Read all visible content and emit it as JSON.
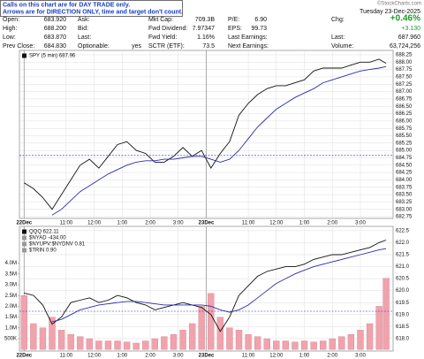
{
  "annotation": [
    "Calls on this chart are for DAY TRADE only.",
    "Arrows are for DIRECTION ONLY, time and target don't count."
  ],
  "watermark": "©StockCharts.com",
  "header": {
    "date": "Tuesday 23-Dec-2025",
    "columns": [
      [
        {
          "label": "Open:",
          "value": "683.920"
        },
        {
          "label": "High:",
          "value": "688.200"
        },
        {
          "label": "Low:",
          "value": "683.870"
        },
        {
          "label": "Prev Close:",
          "value": "684.830"
        }
      ],
      [
        {
          "label": "Ask:"
        },
        {
          "label": "Bid:"
        },
        {
          "label": "Last:"
        },
        {
          "label": "Optionable:",
          "value": "yes"
        }
      ],
      [
        {
          "label": "Mkt Cap:",
          "value": "709.3B"
        },
        {
          "label": "Fwd Dividend:",
          "value": "7.97347"
        },
        {
          "label": "Fwd Yield:",
          "value": "1.16%"
        },
        {
          "label": "SCTR (ETF):",
          "value": "73.5"
        }
      ],
      [
        {
          "label": "P/E:",
          "value": "6.90"
        },
        {
          "label": "EPS:",
          "value": "99.73"
        },
        {
          "label": "Last Earnings:"
        },
        {
          "label": "Next Earnings:"
        }
      ],
      [
        {
          "label": "Chg:",
          "value": "+0.46%"
        },
        {
          "value": "+3.130"
        },
        {
          "label": "Last:",
          "value": "687.960"
        },
        {
          "label": "Volume:",
          "value": "63,724,256"
        }
      ]
    ]
  },
  "chart_data": [
    {
      "type": "line",
      "x": [
        0,
        4,
        8,
        12,
        16,
        20,
        24,
        28,
        32,
        36,
        40,
        44,
        48,
        52,
        56,
        60,
        64,
        68,
        72,
        76,
        80,
        84,
        88,
        92,
        96,
        100,
        104,
        108,
        112,
        116,
        120,
        124,
        128,
        132,
        136,
        140,
        144,
        148,
        152,
        155
      ],
      "xlim": [
        -2,
        158
      ],
      "xticks": [
        {
          "value": 0,
          "label": "22Dec"
        },
        {
          "value": 18,
          "label": "11:00"
        },
        {
          "value": 30,
          "label": "12:00"
        },
        {
          "value": 42,
          "label": "1:00"
        },
        {
          "value": 54,
          "label": "2:00"
        },
        {
          "value": 66,
          "label": "3:00"
        },
        {
          "value": 78,
          "label": "23Dec"
        },
        {
          "value": 96,
          "label": "11:00"
        },
        {
          "value": 108,
          "label": "12:00"
        },
        {
          "value": 120,
          "label": "1:00"
        },
        {
          "value": 132,
          "label": "2:00"
        },
        {
          "value": 144,
          "label": "3:00"
        }
      ],
      "ylim": [
        682.69,
        688.4
      ],
      "yticks": [
        682.75,
        {
          "value": 683,
          "label": "683.00"
        },
        683.25,
        {
          "value": 683.5,
          "label": "683.50"
        },
        683.75,
        {
          "value": 684,
          "label": "684.00"
        },
        684.25,
        {
          "value": 684.5,
          "label": "684.50"
        },
        684.75,
        {
          "value": 685,
          "label": "685.00"
        },
        685.25,
        {
          "value": 685.5,
          "label": "685.50"
        },
        685.75,
        {
          "value": 686,
          "label": "686.00"
        },
        686.25,
        {
          "value": 686.5,
          "label": "686.50"
        },
        686.75,
        {
          "value": 687,
          "label": "687.00"
        },
        687.25,
        {
          "value": 687.5,
          "label": "687.50"
        },
        687.75,
        {
          "value": 688,
          "label": "688.00"
        },
        688.25
      ],
      "grid": true,
      "reference_line": 684.83,
      "series": [
        {
          "name": "SPY (5 min) 687.96",
          "color": "#111111",
          "values": [
            683.9,
            683.7,
            683.4,
            683.0,
            683.5,
            684.0,
            684.5,
            684.7,
            684.4,
            684.8,
            685.2,
            685.3,
            685.0,
            684.9,
            684.6,
            684.6,
            684.8,
            685.1,
            684.8,
            685.0,
            684.4,
            684.9,
            685.3,
            686.2,
            686.6,
            686.9,
            687.1,
            687.2,
            687.2,
            687.3,
            687.4,
            687.7,
            687.8,
            687.8,
            687.8,
            687.9,
            688.0,
            688.0,
            688.1,
            687.96
          ]
        },
        {
          "color": "#2b2bb0",
          "values": [
            null,
            null,
            null,
            682.8,
            683.0,
            683.3,
            683.6,
            683.8,
            684.0,
            684.2,
            684.35,
            684.5,
            684.6,
            684.65,
            684.65,
            684.7,
            684.7,
            684.75,
            684.8,
            684.8,
            684.7,
            684.6,
            684.7,
            685.0,
            685.4,
            685.8,
            686.1,
            686.4,
            686.6,
            686.8,
            686.95,
            687.1,
            687.3,
            687.4,
            687.5,
            687.6,
            687.7,
            687.75,
            687.8,
            687.85
          ]
        }
      ]
    },
    {
      "type": "line",
      "x": [
        0,
        4,
        8,
        12,
        16,
        20,
        24,
        28,
        32,
        36,
        40,
        44,
        48,
        52,
        56,
        60,
        64,
        68,
        72,
        76,
        80,
        84,
        88,
        92,
        96,
        100,
        104,
        108,
        112,
        116,
        120,
        124,
        128,
        132,
        136,
        140,
        144,
        148,
        152,
        155
      ],
      "xlim": [
        -2,
        158
      ],
      "xticks": [
        {
          "value": 0,
          "label": "22Dec"
        },
        {
          "value": 18,
          "label": "11:00"
        },
        {
          "value": 30,
          "label": "12:00"
        },
        {
          "value": 42,
          "label": "1:00"
        },
        {
          "value": 54,
          "label": "2:00"
        },
        {
          "value": 66,
          "label": "3:00"
        },
        {
          "value": 78,
          "label": "23Dec"
        },
        {
          "value": 96,
          "label": "11:00"
        },
        {
          "value": 108,
          "label": "12:00"
        },
        {
          "value": 120,
          "label": "1:00"
        },
        {
          "value": 132,
          "label": "2:00"
        },
        {
          "value": 144,
          "label": "3:00"
        }
      ],
      "ylim": [
        -70000,
        5700000
      ],
      "yticks": [
        {
          "value": 500000,
          "label": "500K"
        },
        {
          "value": 1000000,
          "label": "1.0M"
        },
        {
          "value": 1500000,
          "label": "1.5M"
        },
        {
          "value": 2000000,
          "label": "2.0M"
        },
        {
          "value": 2500000,
          "label": "2.5M"
        },
        {
          "value": 3000000,
          "label": "3.0M"
        },
        {
          "value": 3500000,
          "label": "3.5M"
        },
        {
          "value": 4000000,
          "label": "4.0M"
        }
      ],
      "y2lim": [
        617.48,
        622.68
      ],
      "y2ticks": [
        {
          "value": 618,
          "label": "618.0"
        },
        618.5,
        {
          "value": 619,
          "label": "619.0"
        },
        619.5,
        {
          "value": 620,
          "label": "620.0"
        },
        620.5,
        {
          "value": 621,
          "label": "621.0"
        },
        621.5,
        {
          "value": 622,
          "label": "622.0"
        },
        622.5
      ],
      "grid": true,
      "reference_line": 619.14,
      "annotations": [
        "$NYAD -434.00",
        "$NYUPV:$NYDNV 0.81",
        "$TRIN 0.90"
      ],
      "series": [
        {
          "type": "bar",
          "color": "#f0a3ad",
          "values": [
            2500000,
            1200000,
            1000000,
            1500000,
            900000,
            700000,
            600000,
            500000,
            400000,
            400000,
            400000,
            350000,
            300000,
            400000,
            500000,
            600000,
            700000,
            900000,
            1200000,
            2000000,
            2600000,
            1500000,
            1000000,
            900000,
            700000,
            600000,
            500000,
            400000,
            400000,
            350000,
            400000,
            350000,
            400000,
            500000,
            600000,
            700000,
            900000,
            1200000,
            2000000,
            3300000
          ]
        },
        {
          "name": "QQQ 622.11",
          "color": "#111111",
          "axis": "y2",
          "values": [
            619.9,
            619.8,
            619.4,
            618.6,
            618.9,
            619.5,
            619.6,
            619.7,
            619.5,
            619.6,
            619.8,
            619.7,
            619.5,
            619.4,
            619.2,
            619.3,
            619.4,
            619.5,
            619.4,
            619.3,
            619.0,
            618.3,
            618.9,
            619.8,
            620.2,
            620.6,
            620.8,
            620.9,
            621.0,
            621.0,
            621.1,
            621.3,
            621.4,
            621.5,
            621.5,
            621.6,
            621.7,
            621.8,
            622.0,
            622.11
          ]
        },
        {
          "color": "#2b2bb0",
          "axis": "y2",
          "values": [
            null,
            null,
            null,
            618.7,
            618.8,
            619.0,
            619.2,
            619.3,
            619.4,
            619.45,
            619.5,
            619.55,
            619.55,
            619.5,
            619.45,
            619.4,
            619.4,
            619.4,
            619.4,
            619.4,
            619.35,
            619.2,
            619.1,
            619.2,
            619.4,
            619.7,
            620.0,
            620.3,
            620.5,
            620.7,
            620.85,
            621.0,
            621.1,
            621.2,
            621.3,
            621.4,
            621.5,
            621.6,
            621.7,
            621.75
          ]
        }
      ]
    }
  ]
}
